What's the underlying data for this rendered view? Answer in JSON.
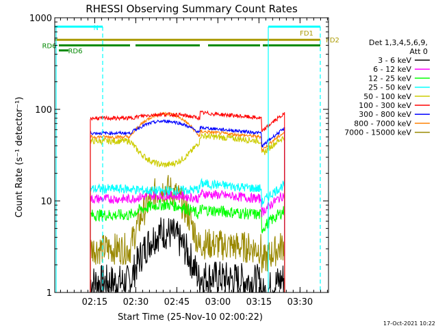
{
  "chart_data": {
    "type": "line",
    "title": "RHESSI Observing Summary Count Rates",
    "xlabel": "Start Time (25-Nov-10 02:00:22)",
    "ylabel": "Count Rate (s⁻¹ detector⁻¹)",
    "y_scale": "log",
    "ylim": [
      1,
      1000
    ],
    "xlim_minutes_after_start": [
      0,
      100
    ],
    "x_ticks": [
      {
        "minutes": 14.6,
        "label": "02:15"
      },
      {
        "minutes": 29.6,
        "label": "02:30"
      },
      {
        "minutes": 44.6,
        "label": "02:45"
      },
      {
        "minutes": 59.6,
        "label": "03:00"
      },
      {
        "minutes": 74.6,
        "label": "03:15"
      },
      {
        "minutes": 89.6,
        "label": "03:30"
      }
    ],
    "y_ticks": [
      {
        "value": 1,
        "label": "1"
      },
      {
        "value": 10,
        "label": "10"
      },
      {
        "value": 100,
        "label": "100"
      },
      {
        "value": 1000,
        "label": "1000"
      }
    ],
    "legend_header": [
      "Det 1,3,4,5,6,9,",
      "Att 0"
    ],
    "legend_placement": "right",
    "grid": false,
    "series": [
      {
        "name": "3 - 6 keV",
        "color": "#000000",
        "level": 1.3
      },
      {
        "name": "6 - 12 keV",
        "color": "#ff00ff",
        "level": 10.5
      },
      {
        "name": "12 - 25 keV",
        "color": "#00ff00",
        "level": 7.0
      },
      {
        "name": "25 - 50 keV",
        "color": "#00ffff",
        "level": 13.5
      },
      {
        "name": "50 - 100 keV",
        "color": "#cccc00",
        "level": 45
      },
      {
        "name": "100 - 300 keV",
        "color": "#ff0000",
        "level": 80
      },
      {
        "name": "300 - 800 keV",
        "color": "#0000ff",
        "level": 55
      },
      {
        "name": "800 - 7000 keV",
        "color": "#ff8000",
        "level": 50
      },
      {
        "name": "7000 - 15000 keV",
        "color": "#998800",
        "level": 3.0
      }
    ],
    "flags": [
      {
        "label": "N",
        "color": "#00ffff",
        "value": 800,
        "segments": [
          [
            0,
            17.5
          ],
          [
            78,
            97
          ]
        ]
      },
      {
        "label": "FD1",
        "color": "#aa9900",
        "value": 575,
        "segments": [
          [
            0,
            97
          ]
        ]
      },
      {
        "label": "FD2",
        "color": "#aa9900",
        "value": 575,
        "segments": []
      },
      {
        "label": "RD6",
        "color": "#008800",
        "value": 500,
        "segments": [
          [
            1.5,
            27.5
          ],
          [
            29.5,
            53
          ],
          [
            56,
            75
          ],
          [
            76,
            97
          ]
        ]
      },
      {
        "label": "RD6",
        "color": "#008800",
        "value": 440,
        "segments": []
      }
    ],
    "vertical_markers": [
      {
        "minutes": 0,
        "color": "#00ffff",
        "style": "solid"
      },
      {
        "minutes": 17.5,
        "color": "#00ffff",
        "style": "dashed"
      },
      {
        "minutes": 78,
        "color": "#00ffff",
        "style": "solid"
      },
      {
        "minutes": 97,
        "color": "#00ffff",
        "style": "dashed"
      }
    ],
    "data_windows_minutes": [
      [
        13,
        80.5
      ],
      [
        80.5,
        84
      ]
    ]
  },
  "footer": {
    "timestamp": "17-Oct-2021 10:22"
  }
}
